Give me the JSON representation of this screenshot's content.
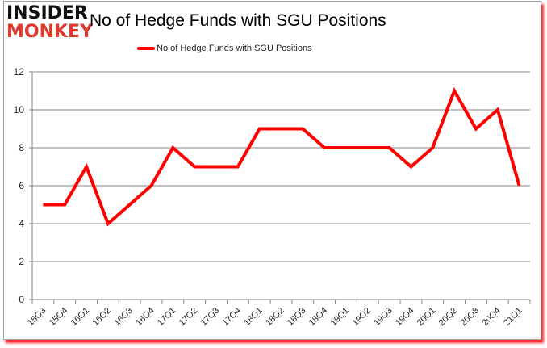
{
  "logo": {
    "line1": "INSIDER",
    "line2": "MONKEY"
  },
  "colors": {
    "series": "#ff0000",
    "grid": "#868686",
    "logo_red": "#e03a2c",
    "shadow": "#ff2a2a"
  },
  "chart_data": {
    "type": "line",
    "title": "No of Hedge Funds with SGU Positions",
    "xlabel": "",
    "ylabel": "",
    "ylim": [
      0,
      12
    ],
    "yticks": [
      0,
      2,
      4,
      6,
      8,
      10,
      12
    ],
    "grid": true,
    "legend_position": "top",
    "categories": [
      "15Q3",
      "15Q4",
      "16Q1",
      "16Q2",
      "16Q3",
      "16Q4",
      "17Q1",
      "17Q2",
      "17Q3",
      "17Q4",
      "18Q1",
      "18Q2",
      "18Q3",
      "18Q4",
      "19Q1",
      "19Q2",
      "19Q3",
      "19Q4",
      "20Q1",
      "20Q2",
      "20Q3",
      "20Q4",
      "21Q1"
    ],
    "series": [
      {
        "name": "No of Hedge Funds with SGU Positions",
        "values": [
          5,
          5,
          7,
          4,
          5,
          6,
          8,
          7,
          7,
          7,
          9,
          9,
          9,
          8,
          8,
          8,
          8,
          7,
          8,
          11,
          9,
          10,
          6
        ]
      }
    ]
  }
}
